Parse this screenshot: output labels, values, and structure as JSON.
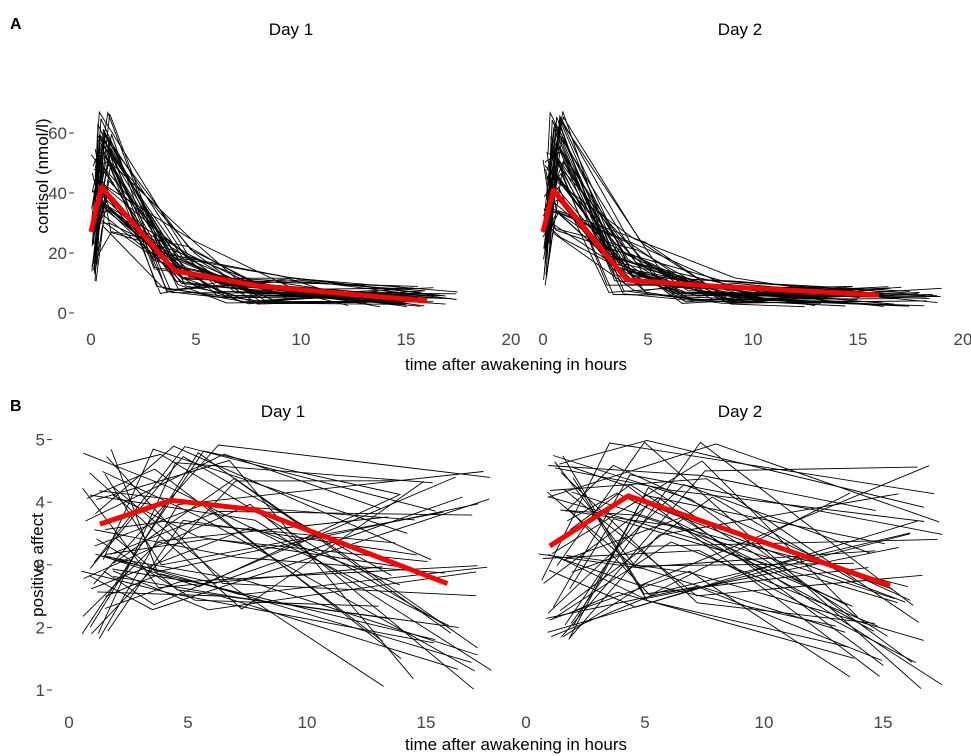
{
  "panels": [
    {
      "letter": "A",
      "ylabel": "cortisol (nmol/l)",
      "xlabel": "time after awakening in hours",
      "ylim": [
        0,
        70
      ],
      "xlim": [
        0,
        20
      ],
      "yticks": [
        0,
        20,
        40,
        60
      ],
      "xticks": [
        0,
        5,
        10,
        15,
        20
      ]
    },
    {
      "letter": "B",
      "ylabel": "positive affect",
      "xlabel": "time after awakening in hours",
      "ylim": [
        1,
        5
      ],
      "xlim": [
        0,
        18
      ],
      "yticks": [
        1,
        2,
        3,
        4,
        5
      ],
      "xticks": [
        0,
        5,
        10,
        15
      ]
    }
  ],
  "colors": {
    "individual": "#000000",
    "mean": "#ff0000",
    "background": "#ffffff"
  },
  "chart_data": [
    {
      "type": "line",
      "panel": "A",
      "facets": [
        {
          "title": "Day 1",
          "series": [
            {
              "name": "mean",
              "x": [
                0,
                0.5,
                4,
                8,
                16
              ],
              "y": [
                27,
                42,
                14,
                9,
                4
              ],
              "style": "red-thick"
            }
          ],
          "individual_lines_count": 50,
          "individual_lines_note": "thin black lines, one per participant, x 0–17.5 h, y 2–71 nmol/l"
        },
        {
          "title": "Day 2",
          "series": [
            {
              "name": "mean",
              "x": [
                0,
                0.5,
                4,
                8,
                16
              ],
              "y": [
                27,
                41,
                11,
                9,
                6
              ],
              "style": "red-thick"
            }
          ],
          "individual_lines_count": 50,
          "individual_lines_note": "thin black lines, one per participant, x 0–19 h, y 2–72 nmol/l"
        }
      ],
      "xlabel": "time after awakening in hours",
      "ylabel": "cortisol (nmol/l)",
      "xlim": [
        0,
        20
      ],
      "ylim": [
        0,
        70
      ],
      "grid": false
    },
    {
      "type": "line",
      "panel": "B",
      "facets": [
        {
          "title": "Day 1",
          "series": [
            {
              "name": "mean",
              "x": [
                1.3,
                4.3,
                7.8,
                15.9
              ],
              "y": [
                3.65,
                4.03,
                3.88,
                2.7
              ],
              "style": "red-thick"
            }
          ],
          "individual_lines_count": 50,
          "individual_lines_note": "thin black lines, one per participant, x 0.5–18 h, y 1.0–5.0"
        },
        {
          "title": "Day 2",
          "series": [
            {
              "name": "mean",
              "x": [
                1.0,
                4.3,
                15.3
              ],
              "y": [
                3.3,
                4.1,
                2.67
              ],
              "style": "red-thick"
            }
          ],
          "individual_lines_count": 50,
          "individual_lines_note": "thin black lines, one per participant, x 0.5–17.5 h, y 1.0–5.0"
        }
      ],
      "xlabel": "time after awakening in hours",
      "ylabel": "positive affect",
      "xlim": [
        0,
        18
      ],
      "ylim": [
        1,
        5
      ],
      "grid": false
    }
  ]
}
